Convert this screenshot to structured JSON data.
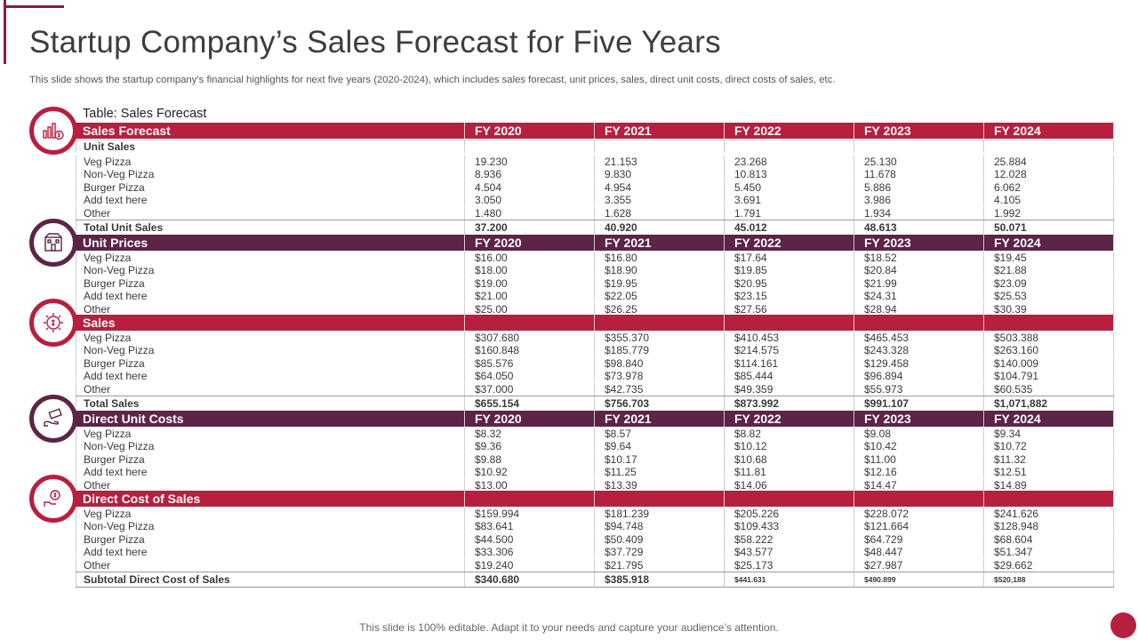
{
  "title": "Startup Company’s Sales Forecast for Five Years",
  "subtitle": "This slide shows the startup company’s financial highlights for next five years (2020-2024), which includes sales forecast, unit prices, sales, direct unit costs, direct costs of sales, etc.",
  "table_caption": "Table: Sales Forecast",
  "footer": "This slide is 100% editable. Adapt it to your needs and capture your audience’s attention.",
  "colors": {
    "accent_red": "#b81f3f",
    "accent_plum": "#5c2447"
  },
  "headers": {
    "sales_forecast": [
      "Sales Forecast",
      "FY 2020",
      "FY 2021",
      "FY 2022",
      "FY 2023",
      "FY 2024"
    ],
    "unit_prices": [
      "Unit Prices",
      "FY 2020",
      "FY 2021",
      "FY 2022",
      "FY 2023",
      "FY 2024"
    ],
    "sales": [
      "Sales",
      "",
      "",
      "",
      "",
      ""
    ],
    "direct_unit_costs": [
      "Direct Unit Costs",
      "FY 2020",
      "FY 2021",
      "FY 2022",
      "FY 2023",
      "FY 2024"
    ],
    "direct_cost_of_sales": [
      "Direct Cost of Sales",
      "",
      "",
      "",
      "",
      ""
    ]
  },
  "unit_sales_label": "Unit Sales",
  "unit_sales": [
    [
      "Veg Pizza",
      "19.230",
      "21.153",
      "23.268",
      "25.130",
      "25.884"
    ],
    [
      "Non-Veg Pizza",
      "8.936",
      "9.830",
      "10.813",
      "11.678",
      "12.028"
    ],
    [
      "Burger Pizza",
      "4.504",
      "4.954",
      "5.450",
      "5.886",
      "6.062"
    ],
    [
      "Add text here",
      "3.050",
      "3.355",
      "3.691",
      "3.986",
      "4.105"
    ],
    [
      "Other",
      "1.480",
      "1.628",
      "1.791",
      "1.934",
      "1.992"
    ]
  ],
  "total_unit_sales": [
    "Total Unit Sales",
    "37.200",
    "40.920",
    "45.012",
    "48.613",
    "50.071"
  ],
  "unit_prices": [
    [
      "Veg Pizza",
      "$16.00",
      "$16.80",
      "$17.64",
      "$18.52",
      "$19.45"
    ],
    [
      "Non-Veg Pizza",
      "$18.00",
      "$18.90",
      "$19.85",
      "$20.84",
      "$21.88"
    ],
    [
      "Burger Pizza",
      "$19.00",
      "$19.95",
      "$20.95",
      "$21.99",
      "$23.09"
    ],
    [
      "Add text here",
      "$21.00",
      "$22.05",
      "$23.15",
      "$24.31",
      "$25.53"
    ],
    [
      "Other",
      "$25.00",
      "$26.25",
      "$27.56",
      "$28.94",
      "$30.39"
    ]
  ],
  "sales": [
    [
      "Veg Pizza",
      "$307.680",
      "$355.370",
      "$410.453",
      "$465.453",
      "$503.388"
    ],
    [
      "Non-Veg Pizza",
      "$160.848",
      "$185.779",
      "$214.575",
      "$243.328",
      "$263.160"
    ],
    [
      "Burger Pizza",
      "$85.576",
      "$98.840",
      "$114.161",
      "$129.458",
      "$140.009"
    ],
    [
      "Add text here",
      "$64.050",
      "$73.978",
      "$85.444",
      "$96.894",
      "$104.791"
    ],
    [
      "Other",
      "$37.000",
      "$42.735",
      "$49.359",
      "$55.973",
      "$60.535"
    ]
  ],
  "total_sales": [
    "Total Sales",
    "$655.154",
    "$756.703",
    "$873.992",
    "$991.107",
    "$1,071,882"
  ],
  "direct_unit_costs": [
    [
      "Veg Pizza",
      "$8.32",
      "$8.57",
      "$8.82",
      "$9.08",
      "$9.34"
    ],
    [
      "Non-Veg Pizza",
      "$9.36",
      "$9.64",
      "$10.12",
      "$10.42",
      "$10.72"
    ],
    [
      "Burger Pizza",
      "$9.88",
      "$10.17",
      "$10.68",
      "$11.00",
      "$11.32"
    ],
    [
      "Add text here",
      "$10.92",
      "$11.25",
      "$11.81",
      "$12.16",
      "$12.51"
    ],
    [
      "Other",
      "$13.00",
      "$13.39",
      "$14.06",
      "$14.47",
      "$14.89"
    ]
  ],
  "direct_cost_of_sales": [
    [
      "Veg Pizza",
      "$159.994",
      "$181.239",
      "$205.226",
      "$228.072",
      "$241.626"
    ],
    [
      "Non-Veg Pizza",
      "$83.641",
      "$94.748",
      "$109.433",
      "$121.664",
      "$128.948"
    ],
    [
      "Burger Pizza",
      "$44.500",
      "$50.409",
      "$58.222",
      "$64.729",
      "$68.604"
    ],
    [
      "Add text here",
      "$33.306",
      "$37.729",
      "$43.577",
      "$48.447",
      "$51.347"
    ],
    [
      "Other",
      "$19.240",
      "$21.795",
      "$25.173",
      "$27.987",
      "$29.662"
    ]
  ],
  "subtotal_direct_cost": [
    "Subtotal Direct Cost of Sales",
    "$340.680",
    "$385.918",
    "$441.631",
    "$490.899",
    "$520,188"
  ],
  "icons": [
    "chart-money-icon",
    "building-icon",
    "gear-dollar-icon",
    "hand-money-icon",
    "person-dollar-icon"
  ]
}
